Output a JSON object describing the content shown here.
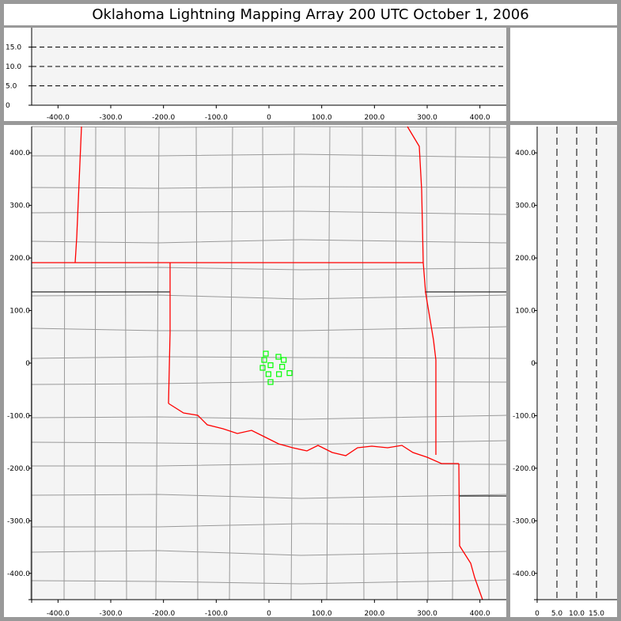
{
  "title": "Oklahoma Lightning Mapping Array   200 UTC  October 1, 2006",
  "colors": {
    "state_border": "#ff0000",
    "county_border": "#999999",
    "source_marker": "#00ff00",
    "panel_bg": "#f4f4f4"
  },
  "chart_data": [
    {
      "type": "scatter",
      "panel": "altitude-vs-east-west",
      "x_ticks": [
        "-400.0",
        "-300.0",
        "-200.0",
        "-100.0",
        "0",
        "100.0",
        "200.0",
        "300.0",
        "400.0"
      ],
      "y_ticks": [
        "0",
        "5.0",
        "10.0",
        "15.0"
      ],
      "xlim": [
        -450,
        450
      ],
      "ylim": [
        0,
        20
      ],
      "grid": "dashed horizontal at 5,10,15",
      "points": []
    },
    {
      "type": "scatter",
      "panel": "plan-view-map",
      "x_ticks": [
        "-400.0",
        "-300.0",
        "-200.0",
        "-100.0",
        "0",
        "100.0",
        "200.0",
        "300.0",
        "400.0"
      ],
      "y_ticks": [
        "400.0",
        "300.0",
        "200.0",
        "100.0",
        "0",
        "-100.0",
        "-200.0",
        "-300.0",
        "-400.0"
      ],
      "xlim": [
        -450,
        450
      ],
      "ylim": [
        -450,
        450
      ],
      "marker": "hollow square",
      "points": [
        {
          "x": -6,
          "y": 18
        },
        {
          "x": -9,
          "y": 6
        },
        {
          "x": 18,
          "y": 12
        },
        {
          "x": 28,
          "y": 6
        },
        {
          "x": -12,
          "y": -9
        },
        {
          "x": 3,
          "y": -4
        },
        {
          "x": 25,
          "y": -7
        },
        {
          "x": -1,
          "y": -21
        },
        {
          "x": 19,
          "y": -21
        },
        {
          "x": 39,
          "y": -19
        },
        {
          "x": 3,
          "y": -36
        }
      ]
    },
    {
      "type": "scatter",
      "panel": "north-south-vs-altitude",
      "x_ticks": [
        "0",
        "5.0",
        "10.0",
        "15.0"
      ],
      "y_ticks": [
        "400.0",
        "300.0",
        "200.0",
        "100.0",
        "0",
        "-100.0",
        "-200.0",
        "-300.0",
        "-400.0"
      ],
      "xlim": [
        0,
        20
      ],
      "ylim": [
        -450,
        450
      ],
      "grid": "dashed vertical at 5,10,15",
      "points": []
    }
  ]
}
